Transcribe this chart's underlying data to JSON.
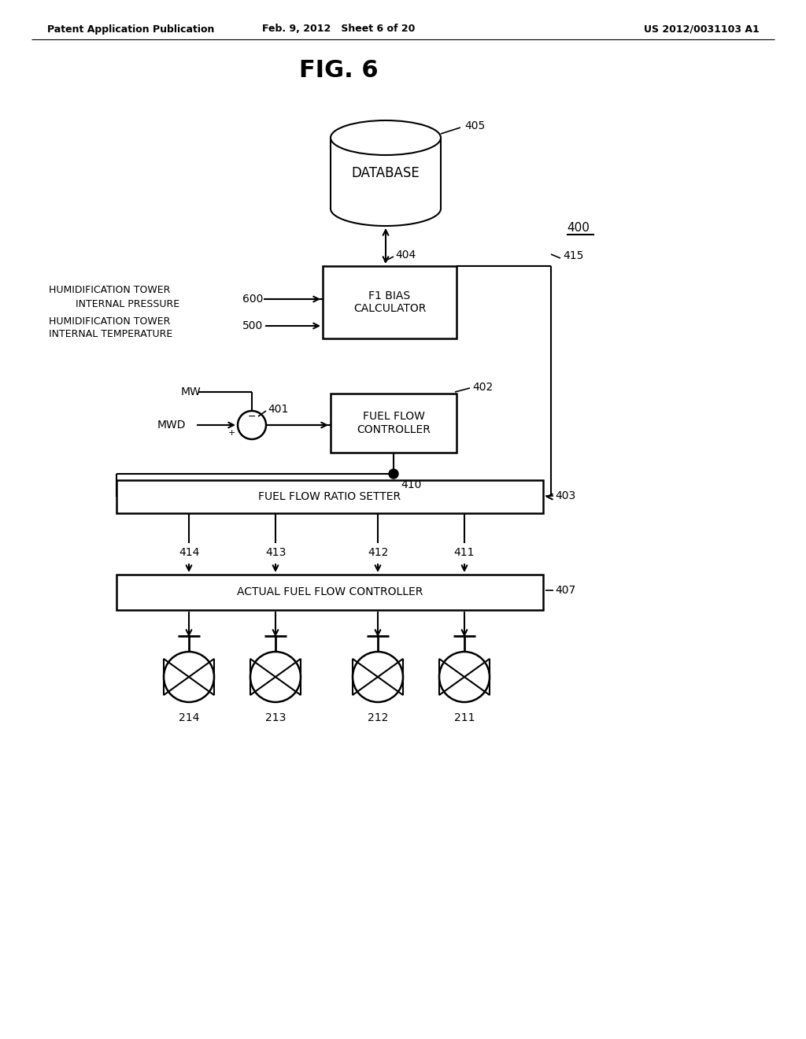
{
  "bg_color": "#ffffff",
  "header_left": "Patent Application Publication",
  "header_mid": "Feb. 9, 2012   Sheet 6 of 20",
  "header_right": "US 2012/0031103 A1",
  "fig_title": "FIG. 6",
  "label_400": "400",
  "label_405": "405",
  "label_404": "404",
  "label_415": "415",
  "label_401": "401",
  "label_402": "402",
  "label_410": "410",
  "label_403": "403",
  "label_407": "407",
  "label_414": "414",
  "label_413": "413",
  "label_412": "412",
  "label_411": "411",
  "label_214": "214",
  "label_213": "213",
  "label_212": "212",
  "label_211": "211",
  "box_f1bias": "F1 BIAS\nCALCULATOR",
  "box_fuelflow": "FUEL FLOW\nCONTROLLER",
  "box_ratio": "FUEL FLOW RATIO SETTER",
  "box_actual": "ACTUAL FUEL FLOW CONTROLLER",
  "box_database": "DATABASE",
  "label_hum_press1": "HUMIDIFICATION TOWER",
  "label_hum_press2": "    INTERNAL PRESSURE",
  "label_600": "600",
  "label_hum_temp1": "HUMIDIFICATION TOWER",
  "label_hum_temp2": "INTERNAL TEMPERATURE",
  "label_500": "500",
  "label_mw": "MW",
  "label_mwd": "MWD"
}
